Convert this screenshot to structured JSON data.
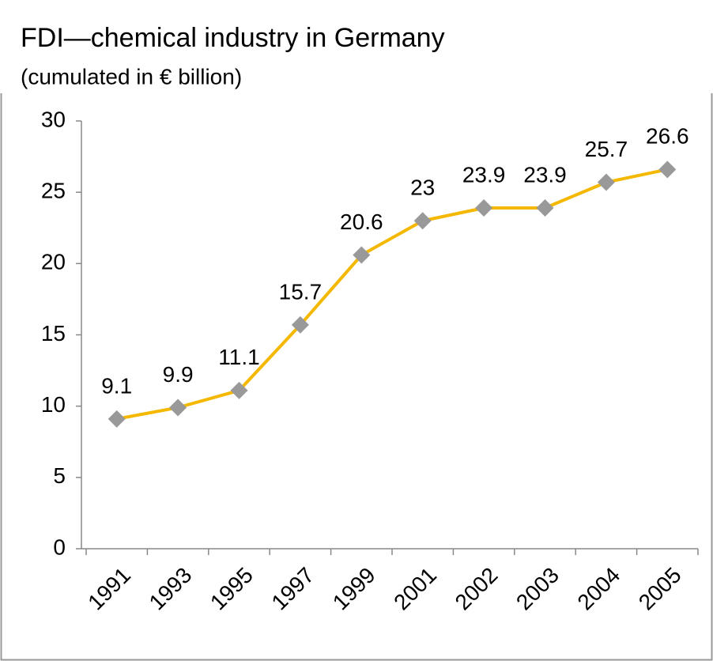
{
  "chart_data": {
    "type": "line",
    "title": "FDI—chemical industry in Germany",
    "subtitle": "(cumulated in € billion)",
    "categories": [
      "1991",
      "1993",
      "1995",
      "1997",
      "1999",
      "2001",
      "2002",
      "2003",
      "2004",
      "2005"
    ],
    "series": [
      {
        "name": "FDI",
        "color": "#f5b800",
        "marker_color": "#999999",
        "values": [
          9.1,
          9.9,
          11.1,
          15.7,
          20.6,
          23,
          23.9,
          23.9,
          25.7,
          26.6
        ]
      }
    ],
    "ylim": [
      0,
      30
    ],
    "yticks": [
      0,
      5,
      10,
      15,
      20,
      25,
      30
    ],
    "grid": false
  }
}
